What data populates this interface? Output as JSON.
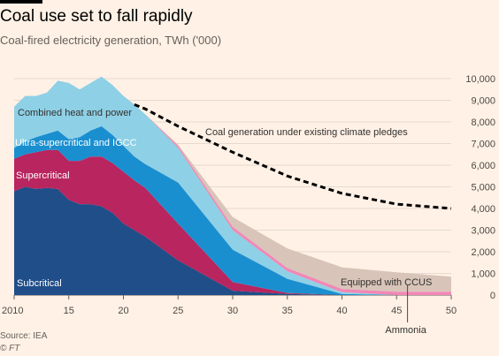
{
  "header": {
    "title": "Coal use set to fall rapidly",
    "subtitle": "Coal-fired electricity generation, TWh ('000)"
  },
  "footer": {
    "source": "Source: IEA",
    "credit": "© FT"
  },
  "chart_data": {
    "type": "area",
    "x": [
      2010,
      2011,
      2012,
      2013,
      2014,
      2015,
      2016,
      2017,
      2018,
      2019,
      2020,
      2021,
      2022,
      2025,
      2030,
      2035,
      2040,
      2045,
      2050
    ],
    "series": [
      {
        "name": "Subcritical",
        "color": "#1f4e89",
        "values": [
          4800,
          5000,
          4900,
          4950,
          4900,
          4400,
          4200,
          4200,
          4100,
          3800,
          3300,
          3000,
          2700,
          1600,
          200,
          50,
          0,
          0,
          0
        ]
      },
      {
        "name": "Supercritical",
        "color": "#b8255f",
        "values": [
          1500,
          1500,
          1700,
          1750,
          1800,
          1800,
          2000,
          2200,
          2300,
          2300,
          2400,
          2300,
          2250,
          1700,
          400,
          50,
          0,
          0,
          0
        ]
      },
      {
        "name": "Ultra-supercritical and IGCC",
        "color": "#1a8fd0",
        "values": [
          500,
          600,
          700,
          750,
          900,
          1000,
          1100,
          1200,
          1400,
          1300,
          1200,
          1100,
          1100,
          1900,
          1500,
          650,
          50,
          0,
          0
        ]
      },
      {
        "name": "Combined heat and power",
        "color": "#8ed0e6",
        "values": [
          1900,
          2100,
          1900,
          1900,
          2300,
          2600,
          2200,
          2200,
          2300,
          2300,
          2300,
          2400,
          2300,
          1600,
          900,
          350,
          80,
          0,
          0
        ]
      },
      {
        "name": "Equipped with CCUS",
        "color": "#f287b6",
        "values": [
          0,
          0,
          0,
          0,
          0,
          0,
          0,
          0,
          0,
          0,
          0,
          0,
          0,
          100,
          150,
          150,
          150,
          150,
          150
        ]
      },
      {
        "name": "Ammonia",
        "color": "#d8c4b9",
        "values": [
          0,
          0,
          0,
          0,
          0,
          0,
          0,
          0,
          0,
          0,
          0,
          0,
          0,
          50,
          450,
          900,
          1000,
          900,
          700
        ]
      }
    ],
    "line": {
      "name": "Coal generation under existing climate pledges",
      "x": [
        2021,
        2022,
        2025,
        2030,
        2035,
        2040,
        2045,
        2050
      ],
      "values": [
        8800,
        8600,
        7800,
        6600,
        5500,
        4700,
        4200,
        4000
      ]
    },
    "xlim": [
      2010,
      2050
    ],
    "ylim": [
      0,
      10000
    ],
    "xticks": [
      2010,
      2015,
      2020,
      2025,
      2030,
      2035,
      2040,
      2045,
      2050
    ],
    "xtick_labels": [
      "2010",
      "15",
      "20",
      "25",
      "30",
      "35",
      "40",
      "45",
      "50"
    ],
    "yticks": [
      0,
      1000,
      2000,
      3000,
      4000,
      5000,
      6000,
      7000,
      8000,
      9000,
      10000
    ],
    "ytick_labels": [
      "0",
      "1,000",
      "2,000",
      "3,000",
      "4,000",
      "5,000",
      "6,000",
      "7,000",
      "8,000",
      "9,000",
      "10,000"
    ],
    "ammonia_label": "Ammonia",
    "grid": true
  }
}
